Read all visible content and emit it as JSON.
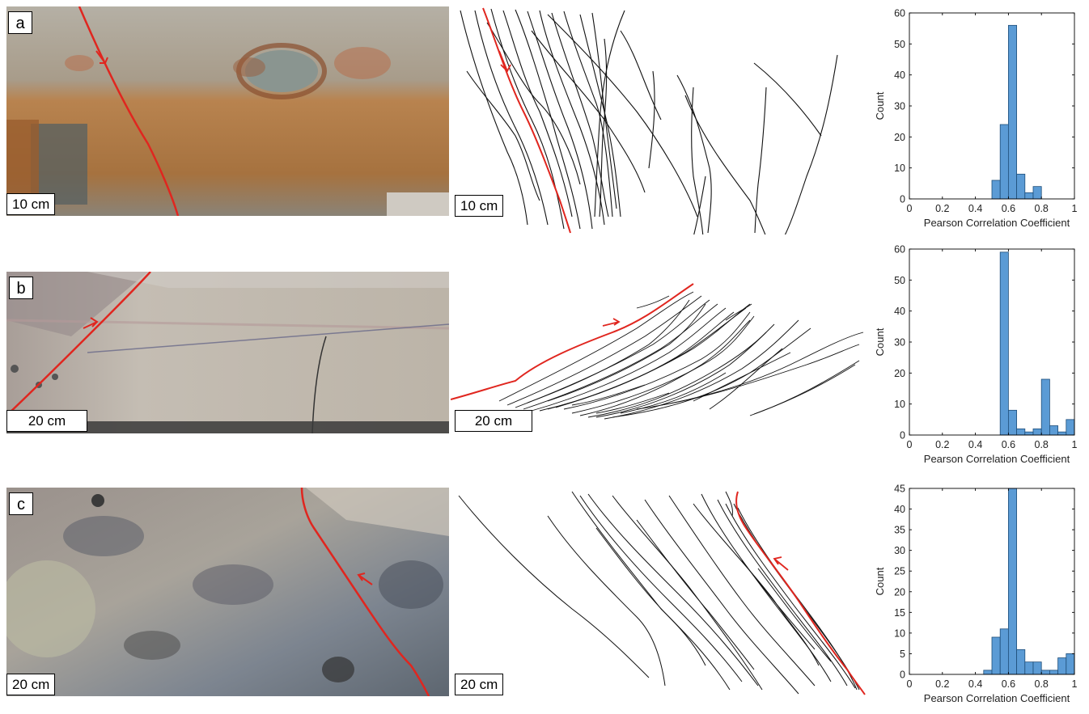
{
  "panels": [
    {
      "label": "a",
      "photo_scale": "10 cm",
      "trace_scale": "10 cm"
    },
    {
      "label": "b",
      "photo_scale": "20 cm",
      "trace_scale": "20 cm"
    },
    {
      "label": "c",
      "photo_scale": "20 cm",
      "trace_scale": "20 cm"
    }
  ],
  "colors": {
    "fault": "#e0261f",
    "bar": "#5b9bd5",
    "bar_edge": "#1f4e79"
  },
  "chart_data": [
    {
      "type": "bar",
      "panel": "a",
      "xlabel": "Pearson Correlation Coefficient",
      "ylabel": "Count",
      "xlim": [
        0,
        1
      ],
      "ylim": [
        0,
        60
      ],
      "xticks": [
        "0",
        "0.2",
        "0.4",
        "0.6",
        "0.8",
        "1"
      ],
      "yticks": [
        "0",
        "10",
        "20",
        "30",
        "40",
        "50",
        "60"
      ],
      "bin_width": 0.05,
      "bin_starts": [
        0.5,
        0.55,
        0.6,
        0.65,
        0.7,
        0.75
      ],
      "values": [
        6,
        24,
        56,
        8,
        2,
        4
      ]
    },
    {
      "type": "bar",
      "panel": "b",
      "xlabel": "Pearson Correlation Coefficient",
      "ylabel": "Count",
      "xlim": [
        0,
        1
      ],
      "ylim": [
        0,
        60
      ],
      "xticks": [
        "0",
        "0.2",
        "0.4",
        "0.6",
        "0.8",
        "1"
      ],
      "yticks": [
        "0",
        "10",
        "20",
        "30",
        "40",
        "50",
        "60"
      ],
      "bin_width": 0.05,
      "bin_starts": [
        0.55,
        0.6,
        0.65,
        0.7,
        0.75,
        0.8,
        0.85,
        0.9,
        0.95
      ],
      "values": [
        59,
        8,
        2,
        1,
        2,
        18,
        3,
        1,
        5
      ]
    },
    {
      "type": "bar",
      "panel": "c",
      "xlabel": "Pearson Correlation Coefficient",
      "ylabel": "Count",
      "xlim": [
        0,
        1
      ],
      "ylim": [
        0,
        45
      ],
      "xticks": [
        "0",
        "0.2",
        "0.4",
        "0.6",
        "0.8",
        "1"
      ],
      "yticks": [
        "0",
        "5",
        "10",
        "15",
        "20",
        "25",
        "30",
        "35",
        "40",
        "45"
      ],
      "bin_width": 0.05,
      "bin_starts": [
        0.45,
        0.5,
        0.55,
        0.6,
        0.65,
        0.7,
        0.75,
        0.8,
        0.85,
        0.9,
        0.95
      ],
      "values": [
        1,
        9,
        11,
        45,
        6,
        3,
        3,
        1,
        1,
        4,
        5
      ]
    }
  ]
}
